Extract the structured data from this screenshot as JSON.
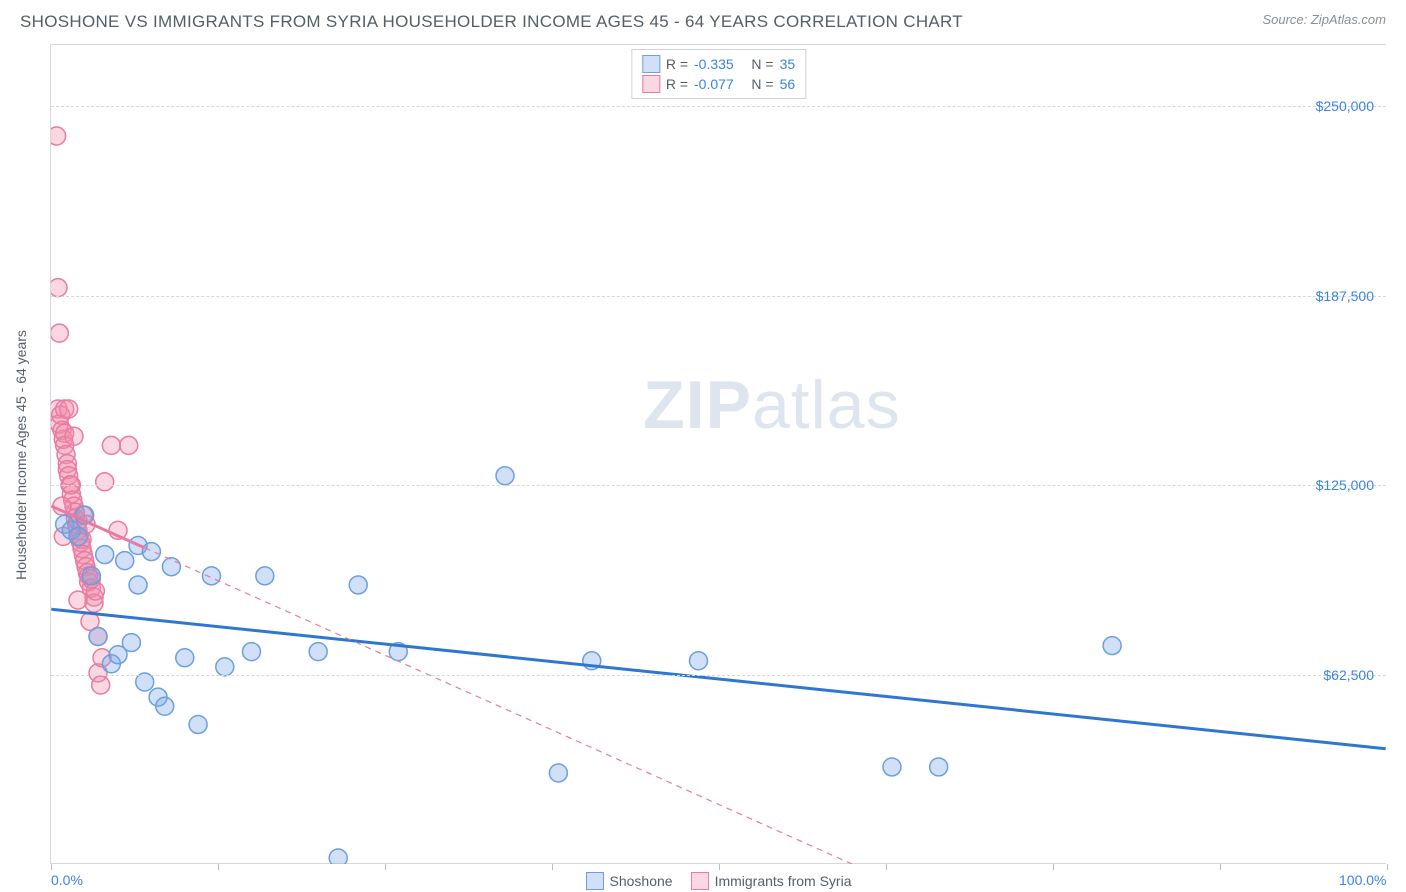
{
  "header": {
    "title": "SHOSHONE VS IMMIGRANTS FROM SYRIA HOUSEHOLDER INCOME AGES 45 - 64 YEARS CORRELATION CHART",
    "source_prefix": "Source: ",
    "source": "ZipAtlas.com"
  },
  "chart": {
    "type": "scatter",
    "ylabel": "Householder Income Ages 45 - 64 years",
    "xlim": [
      0,
      100
    ],
    "ylim": [
      0,
      270000
    ],
    "xtick_positions": [
      0,
      12.5,
      25,
      37.5,
      50,
      62.5,
      75,
      87.5,
      100
    ],
    "xtick_labels": {
      "0": "0.0%",
      "100": "100.0%"
    },
    "ygrid": [
      62500,
      125000,
      187500,
      250000
    ],
    "ytick_labels": {
      "62500": "$62,500",
      "125000": "$125,000",
      "187500": "$187,500",
      "250000": "$250,000"
    },
    "background_color": "#ffffff",
    "grid_color": "#d6d8dc",
    "axis_color": "#d6d8dc",
    "marker_radius": 9,
    "marker_stroke_width": 1.5,
    "series": [
      {
        "name": "Shoshone",
        "fill": "rgba(122,167,229,0.35)",
        "stroke": "#6aa0e0",
        "trend_stroke": "#2e77d0",
        "trend_width": 3,
        "trend_dash": "",
        "trend": {
          "x1": 0,
          "y1": 84000,
          "x2": 100,
          "y2": 38000
        },
        "r_value": "-0.335",
        "n_value": "35",
        "points": [
          [
            1.0,
            112000
          ],
          [
            1.5,
            110000
          ],
          [
            2.0,
            108000
          ],
          [
            2.5,
            115000
          ],
          [
            3.0,
            95000
          ],
          [
            3.5,
            75000
          ],
          [
            4.0,
            102000
          ],
          [
            4.5,
            66000
          ],
          [
            5.0,
            69000
          ],
          [
            5.5,
            100000
          ],
          [
            6.0,
            73000
          ],
          [
            6.5,
            92000
          ],
          [
            6.5,
            105000
          ],
          [
            7.0,
            60000
          ],
          [
            7.5,
            103000
          ],
          [
            8.0,
            55000
          ],
          [
            8.5,
            52000
          ],
          [
            9.0,
            98000
          ],
          [
            10.0,
            68000
          ],
          [
            11.0,
            46000
          ],
          [
            12.0,
            95000
          ],
          [
            13.0,
            65000
          ],
          [
            15.0,
            70000
          ],
          [
            16.0,
            95000
          ],
          [
            20.0,
            70000
          ],
          [
            21.5,
            2000
          ],
          [
            23.0,
            92000
          ],
          [
            26.0,
            70000
          ],
          [
            38.0,
            30000
          ],
          [
            40.5,
            67000
          ],
          [
            48.5,
            67000
          ],
          [
            63.0,
            32000
          ],
          [
            66.5,
            32000
          ],
          [
            79.5,
            72000
          ],
          [
            34.0,
            128000
          ]
        ]
      },
      {
        "name": "Immigrants from Syria",
        "fill": "rgba(240,140,170,0.35)",
        "stroke": "#e87ba3",
        "trend_stroke": "#e87ba3",
        "trend_width": 1.2,
        "trend_dash": "6 5",
        "trend": {
          "x1": 0,
          "y1": 118000,
          "x2": 60,
          "y2": 0
        },
        "trend_solid_until": 7,
        "r_value": "-0.077",
        "n_value": "56",
        "points": [
          [
            0.4,
            240000
          ],
          [
            0.5,
            190000
          ],
          [
            0.6,
            175000
          ],
          [
            0.5,
            150000
          ],
          [
            0.6,
            145000
          ],
          [
            0.7,
            148000
          ],
          [
            0.8,
            143000
          ],
          [
            0.9,
            140000
          ],
          [
            1.0,
            142000
          ],
          [
            1.0,
            138000
          ],
          [
            1.1,
            135000
          ],
          [
            1.2,
            132000
          ],
          [
            1.2,
            130000
          ],
          [
            1.3,
            128000
          ],
          [
            1.4,
            125000
          ],
          [
            1.5,
            122000
          ],
          [
            1.5,
            125000
          ],
          [
            1.6,
            120000
          ],
          [
            1.7,
            118000
          ],
          [
            1.8,
            116000
          ],
          [
            1.8,
            114000
          ],
          [
            1.9,
            112000
          ],
          [
            2.0,
            110000
          ],
          [
            2.0,
            113000
          ],
          [
            2.1,
            108000
          ],
          [
            2.2,
            106000
          ],
          [
            2.3,
            104000
          ],
          [
            2.3,
            107000
          ],
          [
            2.4,
            102000
          ],
          [
            2.5,
            100000
          ],
          [
            2.6,
            98000
          ],
          [
            2.7,
            96000
          ],
          [
            2.8,
            95000
          ],
          [
            2.8,
            93000
          ],
          [
            3.0,
            91000
          ],
          [
            3.0,
            94000
          ],
          [
            3.2,
            88000
          ],
          [
            3.2,
            86000
          ],
          [
            3.3,
            90000
          ],
          [
            3.5,
            75000
          ],
          [
            3.5,
            63000
          ],
          [
            3.7,
            59000
          ],
          [
            3.8,
            68000
          ],
          [
            4.0,
            126000
          ],
          [
            4.5,
            138000
          ],
          [
            5.0,
            110000
          ],
          [
            5.8,
            138000
          ],
          [
            1.0,
            150000
          ],
          [
            1.3,
            150000
          ],
          [
            1.7,
            141000
          ],
          [
            0.8,
            118000
          ],
          [
            0.9,
            108000
          ],
          [
            2.4,
            115000
          ],
          [
            2.6,
            112000
          ],
          [
            2.0,
            87000
          ],
          [
            2.9,
            80000
          ]
        ]
      }
    ],
    "legend_top": {
      "r_label": "R =",
      "n_label": "N ="
    },
    "legend_bottom": [
      {
        "label": "Shoshone",
        "series": 0
      },
      {
        "label": "Immigrants from Syria",
        "series": 1
      }
    ],
    "watermark": {
      "bold": "ZIP",
      "rest": "atlas"
    }
  }
}
